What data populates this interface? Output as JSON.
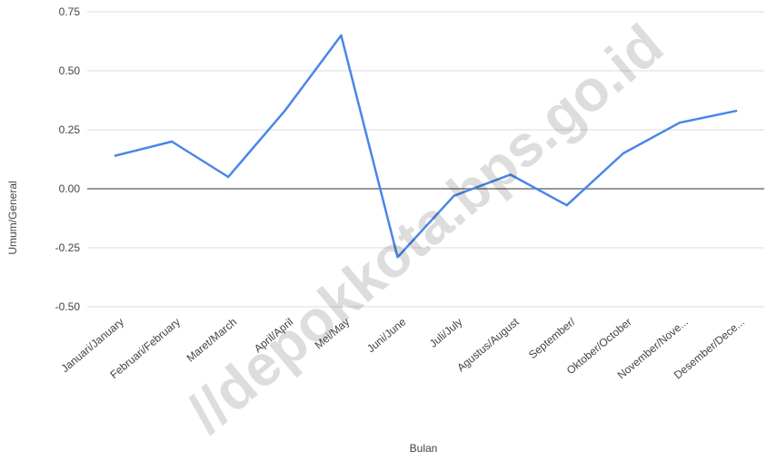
{
  "chart_data": {
    "type": "line",
    "categories": [
      "Januari/January",
      "Februari/February",
      "Maret/March",
      "April/April",
      "Mei/May",
      "Juni/June",
      "Juli/July",
      "Agustus/August",
      "September/",
      "Oktober/October",
      "November/Nove...",
      "Desember/Dece..."
    ],
    "series": [
      {
        "values": [
          0.14,
          0.2,
          0.05,
          0.33,
          0.65,
          -0.29,
          -0.03,
          0.06,
          -0.07,
          0.15,
          0.28,
          0.33
        ],
        "color": "#4a86e8"
      }
    ],
    "yticks": [
      "0.75",
      "0.50",
      "0.25",
      "0.00",
      "-0.25",
      "-0.50"
    ],
    "ylim": [
      -0.5,
      0.75
    ],
    "xlabel": "Bulan",
    "ylabel": "Umum/General",
    "grid": true,
    "watermark": "//depokkota.bps.go.id"
  }
}
